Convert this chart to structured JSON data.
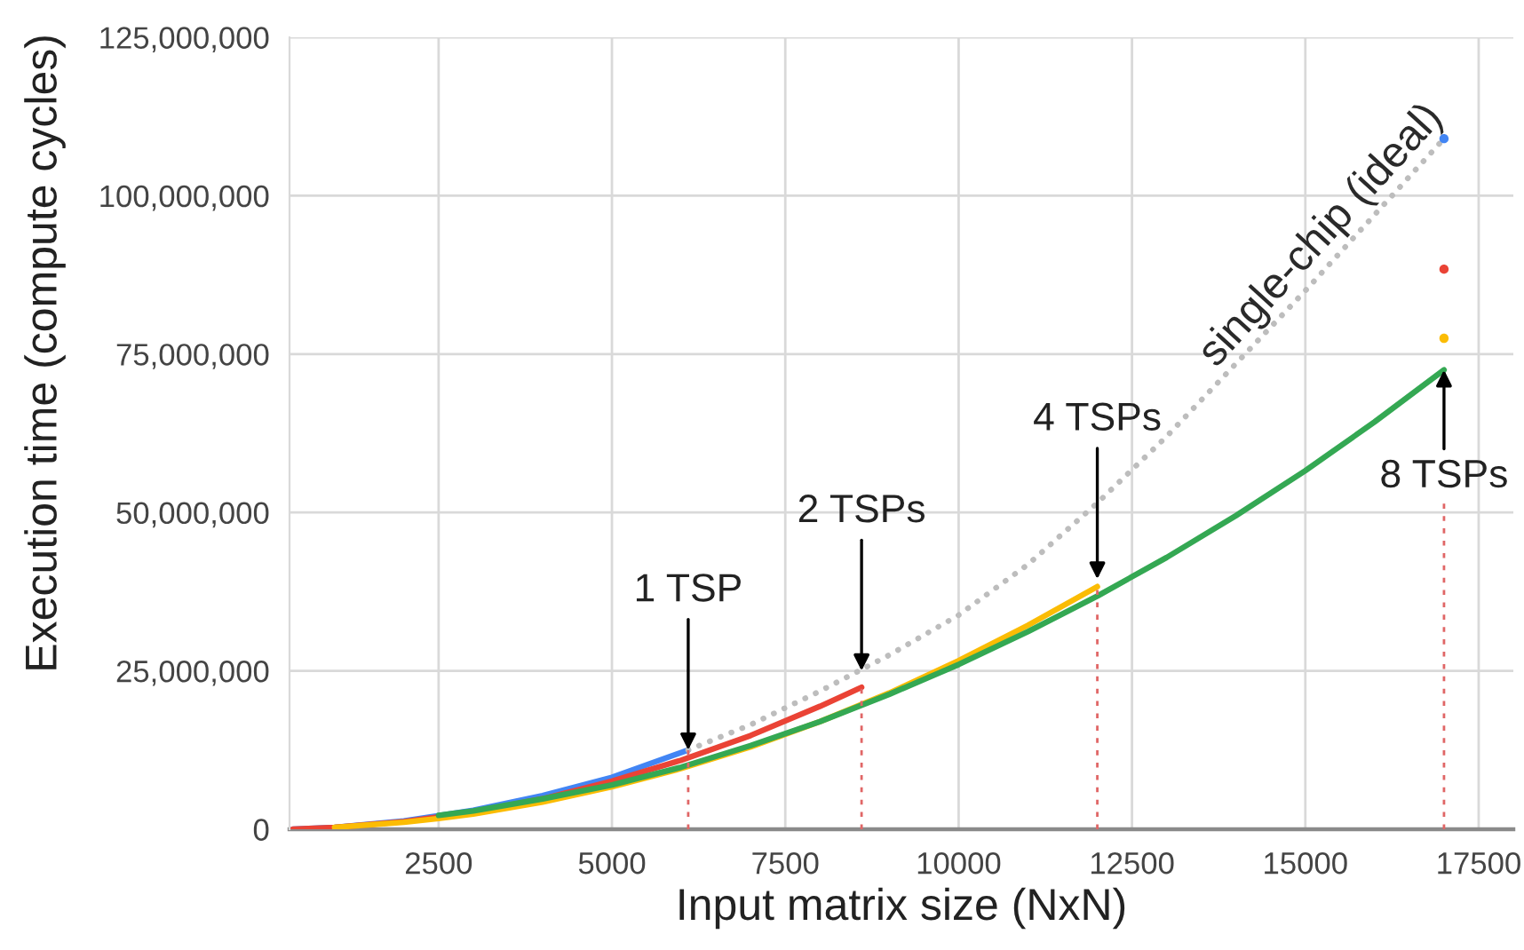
{
  "chart_data": {
    "type": "line",
    "xlabel": "Input matrix size (NxN)",
    "ylabel": "Execution time (compute cycles)",
    "xlim": [
      350,
      18000
    ],
    "xticks": [
      2500,
      5000,
      7500,
      10000,
      12500,
      15000,
      17500
    ],
    "ylim": [
      0,
      125000000
    ],
    "yticks": [
      0,
      {
        "value": 25000000,
        "label": "25,000,000"
      },
      {
        "value": 50000000,
        "label": "50,000,000"
      },
      {
        "value": 75000000,
        "label": "75,000,000"
      },
      {
        "value": 100000000,
        "label": "100,000,000"
      },
      {
        "value": 125000000,
        "label": "125,000,000"
      }
    ],
    "grid": true,
    "series": [
      {
        "color": "#4285f4",
        "x": [
          400,
          1000,
          2000,
          3000,
          4000,
          5000,
          6100
        ],
        "values": [
          0,
          300000,
          1300000,
          3000000,
          5300000,
          8200000,
          12500000
        ]
      },
      {
        "color": "#ea4335",
        "x": [
          400,
          1000,
          2000,
          3000,
          4000,
          5000,
          6000,
          7000,
          8000,
          8600
        ],
        "values": [
          0,
          300000,
          1200000,
          2700000,
          4800000,
          7600000,
          10900000,
          14800000,
          19400000,
          22400000
        ]
      },
      {
        "color": "#fbbc04",
        "x": [
          1000,
          2000,
          2500,
          3000,
          4000,
          5000,
          6000,
          7000,
          8000,
          9000,
          10000,
          11000,
          12000
        ],
        "values": [
          300000,
          1100000,
          1700000,
          2400000,
          4300000,
          6700000,
          9600000,
          13000000,
          17000000,
          21500000,
          26600000,
          32200000,
          38300000
        ]
      },
      {
        "color": "#34a853",
        "x": [
          2500,
          3000,
          4000,
          5000,
          6000,
          7000,
          8000,
          9000,
          10000,
          11000,
          12000,
          13000,
          14000,
          15000,
          16000,
          17000
        ],
        "values": [
          2200000,
          2900000,
          4800000,
          7000000,
          9800000,
          13200000,
          17000000,
          21300000,
          26000000,
          31200000,
          36800000,
          42900000,
          49500000,
          56600000,
          64300000,
          72500000
        ]
      },
      {
        "name": "single-chip (ideal)",
        "color": "#bdbdbd",
        "line_style": "dotted",
        "x": [
          6100,
          7000,
          8000,
          9000,
          10000,
          11000,
          12000,
          13000,
          14000,
          15000,
          16000,
          17000
        ],
        "values": [
          12500000,
          16500000,
          21800000,
          27500000,
          33800000,
          41800000,
          51500000,
          62000000,
          73500000,
          85000000,
          97000000,
          109000000
        ]
      },
      {
        "type": "scatter",
        "marker": "circle",
        "color": "#4285f4",
        "x": [
          17000
        ],
        "values": [
          109000000
        ]
      },
      {
        "type": "scatter",
        "marker": "circle",
        "color": "#ea4335",
        "x": [
          17000
        ],
        "values": [
          88400000
        ]
      },
      {
        "type": "scatter",
        "marker": "circle",
        "color": "#fbbc04",
        "x": [
          17000
        ],
        "values": [
          77500000
        ]
      },
      {
        "color": "#e06666",
        "line_style": "dotted",
        "x": [
          6100,
          6100
        ],
        "values": [
          0,
          12500000
        ]
      },
      {
        "color": "#e06666",
        "line_style": "dotted",
        "x": [
          8600,
          8600
        ],
        "values": [
          0,
          22400000
        ]
      },
      {
        "color": "#e06666",
        "line_style": "dotted",
        "x": [
          12000,
          12000
        ],
        "values": [
          0,
          38300000
        ]
      },
      {
        "color": "#e06666",
        "line_style": "dotted",
        "x": [
          17000,
          17000
        ],
        "values": [
          0,
          51500000
        ]
      }
    ],
    "annotations": [
      {
        "text": "1 TSP",
        "x": 6100,
        "y": 12500000
      },
      {
        "text": "2 TSPs",
        "x": 8600,
        "y": 25000000
      },
      {
        "text": "4 TSPs",
        "x": 12000,
        "y": 39500000
      },
      {
        "text": "8 TSPs",
        "x": 17000,
        "y": 72500000
      }
    ]
  }
}
